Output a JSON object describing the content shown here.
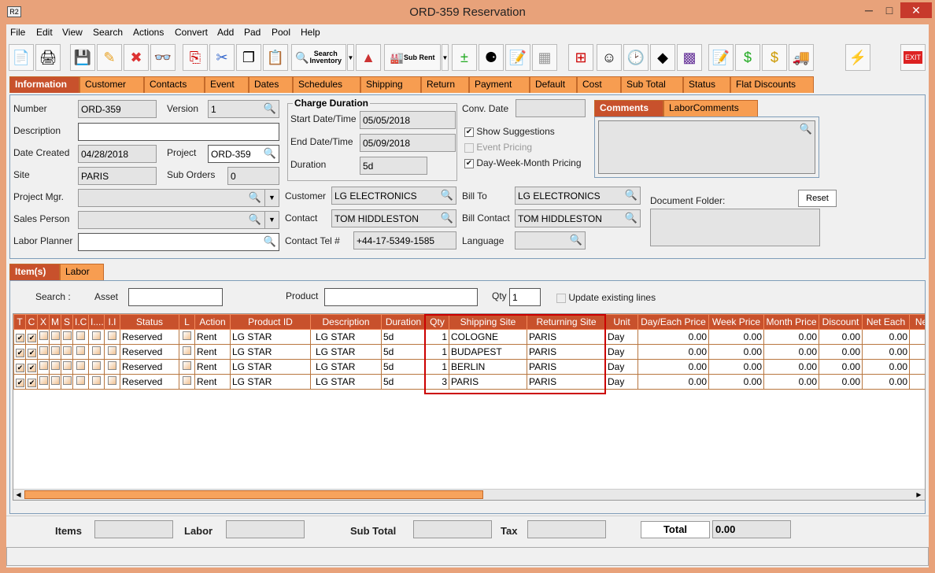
{
  "window": {
    "title": "ORD-359 Reservation",
    "app_icon": "R2",
    "minimize": "─",
    "maximize": "□",
    "close": "✕"
  },
  "menu": [
    "File",
    "Edit",
    "View",
    "Search",
    "Actions",
    "Convert",
    "Add",
    "Pad",
    "Pool",
    "Help"
  ],
  "toolbar": {
    "search_inventory": "Search Inventory",
    "sub_rent": "Sub Rent",
    "exit": "EXIT",
    "icons": [
      "new-document-icon",
      "print-icon",
      "save-icon",
      "edit-pencil-icon",
      "delete-x-icon",
      "binoculars-icon",
      "copy-order-icon",
      "cut-icon",
      "copy-icon",
      "paste-icon"
    ]
  },
  "main_tabs": [
    "Information",
    "Customer",
    "Contacts",
    "Event",
    "Dates",
    "Schedules",
    "Shipping",
    "Return",
    "Payment",
    "Default",
    "Cost",
    "Sub Total",
    "Status",
    "Flat Discounts"
  ],
  "info": {
    "number_label": "Number",
    "number": "ORD-359",
    "version_label": "Version",
    "version": "1",
    "description_label": "Description",
    "description": "",
    "date_created_label": "Date Created",
    "date_created": "04/28/2018",
    "project_label": "Project",
    "project": "ORD-359",
    "site_label": "Site",
    "site": "PARIS",
    "sub_orders_label": "Sub Orders",
    "sub_orders": "0",
    "project_mgr_label": "Project Mgr.",
    "project_mgr": "",
    "sales_person_label": "Sales Person",
    "sales_person": "",
    "labor_planner_label": "Labor Planner",
    "labor_planner": "",
    "charge_duration_title": "Charge Duration",
    "start_label": "Start Date/Time",
    "start": "05/05/2018",
    "end_label": "End Date/Time",
    "end": "05/09/2018",
    "duration_label": "Duration",
    "duration": "5d",
    "conv_date_label": "Conv. Date",
    "conv_date": "",
    "show_suggestions": "Show Suggestions",
    "event_pricing": "Event Pricing",
    "dwm_pricing": "Day-Week-Month Pricing",
    "customer_label": "Customer",
    "customer": "LG ELECTRONICS",
    "contact_label": "Contact",
    "contact": "TOM HIDDLESTON",
    "contact_tel_label": "Contact Tel #",
    "contact_tel": "+44-17-5349-1585",
    "bill_to_label": "Bill To",
    "bill_to": "LG ELECTRONICS",
    "bill_contact_label": "Bill Contact",
    "bill_contact": "TOM HIDDLESTON",
    "language_label": "Language",
    "language": "",
    "comment_tabs": [
      "Comments",
      "LaborComments"
    ],
    "document_folder_label": "Document Folder:",
    "reset": "Reset"
  },
  "item_tabs": [
    "Item(s)",
    "Labor"
  ],
  "search": {
    "label": "Search :",
    "asset_label": "Asset",
    "asset": "",
    "product_label": "Product",
    "product": "",
    "qty_label": "Qty",
    "qty": "1",
    "update_existing": "Update existing lines"
  },
  "grid": {
    "columns": [
      "T",
      "C",
      "X",
      "M",
      "S",
      "I.C",
      "I....",
      "I.I",
      "Status",
      "L",
      "Action",
      "Product ID",
      "Description",
      "Duration",
      "Qty",
      "Shipping Site",
      "Returning Site",
      "Unit",
      "Day/Each Price",
      "Week Price",
      "Month Price",
      "Discount",
      "Net Each",
      "Ne"
    ],
    "rows": [
      {
        "t": true,
        "c": true,
        "status": "Reserved",
        "action": "Rent",
        "product_id": "LG STAR",
        "description": "LG STAR",
        "duration": "5d",
        "qty": "1",
        "shipping_site": "COLOGNE",
        "returning_site": "PARIS",
        "unit": "Day",
        "day_price": "0.00",
        "week_price": "0.00",
        "month_price": "0.00",
        "discount": "0.00",
        "net_each": "0.00"
      },
      {
        "t": true,
        "c": true,
        "status": "Reserved",
        "action": "Rent",
        "product_id": "LG STAR",
        "description": "LG STAR",
        "duration": "5d",
        "qty": "1",
        "shipping_site": "BUDAPEST",
        "returning_site": "PARIS",
        "unit": "Day",
        "day_price": "0.00",
        "week_price": "0.00",
        "month_price": "0.00",
        "discount": "0.00",
        "net_each": "0.00"
      },
      {
        "t": true,
        "c": true,
        "status": "Reserved",
        "action": "Rent",
        "product_id": "LG STAR",
        "description": "LG STAR",
        "duration": "5d",
        "qty": "1",
        "shipping_site": "BERLIN",
        "returning_site": "PARIS",
        "unit": "Day",
        "day_price": "0.00",
        "week_price": "0.00",
        "month_price": "0.00",
        "discount": "0.00",
        "net_each": "0.00"
      },
      {
        "t": true,
        "c": true,
        "status": "Reserved",
        "action": "Rent",
        "product_id": "LG STAR",
        "description": "LG STAR",
        "duration": "5d",
        "qty": "3",
        "shipping_site": "PARIS",
        "returning_site": "PARIS",
        "unit": "Day",
        "day_price": "0.00",
        "week_price": "0.00",
        "month_price": "0.00",
        "discount": "0.00",
        "net_each": "0.00"
      }
    ]
  },
  "footer": {
    "items_label": "Items",
    "items": "",
    "labor_label": "Labor",
    "labor": "",
    "subtotal_label": "Sub Total",
    "subtotal": "",
    "tax_label": "Tax",
    "tax": "",
    "total_label": "Total",
    "total": "0.00"
  },
  "colors": {
    "accent": "#c8512c",
    "tab": "#f79d51",
    "highlight": "#cc0000"
  }
}
